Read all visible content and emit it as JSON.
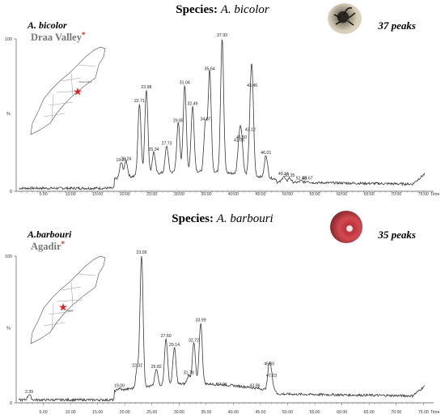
{
  "charts": [
    {
      "title_prefix": "Species:",
      "species": "A. bicolor",
      "peak_count_label": "37 peaks",
      "specimen_label": "A. bicolor",
      "location_label": "Draa Valley",
      "location_marker": "*",
      "photo_icon": "scorpion-photo-icon",
      "map_icon": "morocco-map-icon"
    },
    {
      "title_prefix": "Species:",
      "species": "A. barbouri",
      "peak_count_label": "35 peaks",
      "specimen_label": "A.barbouri",
      "location_label": "Agadir",
      "location_marker": "*",
      "photo_icon": "scorpion-photo-icon",
      "map_icon": "morocco-map-icon"
    }
  ],
  "colors": {
    "trace": "#3a3a3a",
    "marker": "#e02020",
    "text": "#000000",
    "site": "#777777"
  },
  "chart_data": [
    {
      "type": "line",
      "title": "Species: A. bicolor",
      "xlabel": "Time",
      "ylabel": "%",
      "xlim": [
        0,
        76
      ],
      "ylim": [
        0,
        100
      ],
      "x_ticks": [
        "5.00",
        "10.00",
        "15.00",
        "20.00",
        "25.00",
        "30.00",
        "35.00",
        "40.00",
        "45.00",
        "50.00",
        "55.00",
        "60.00",
        "65.00",
        "70.00",
        "75.00"
      ],
      "y_ticks": [
        "0",
        "100"
      ],
      "peaks": [
        {
          "x": 19.35,
          "label": "19.35",
          "y": 18
        },
        {
          "x": 20.24,
          "label": "20.24",
          "y": 19
        },
        {
          "x": 22.71,
          "label": "22.71",
          "y": 57
        },
        {
          "x": 23.98,
          "label": "23.98",
          "y": 66
        },
        {
          "x": 25.34,
          "label": "25.34",
          "y": 25
        },
        {
          "x": 27.73,
          "label": "27.73",
          "y": 29
        },
        {
          "x": 29.85,
          "label": "29.85",
          "y": 44
        },
        {
          "x": 31.04,
          "label": "31.04",
          "y": 69
        },
        {
          "x": 32.49,
          "label": "32.49",
          "y": 55
        },
        {
          "x": 34.87,
          "label": "34.87",
          "y": 45
        },
        {
          "x": 35.64,
          "label": "35.64",
          "y": 78
        },
        {
          "x": 37.93,
          "label": "37.93",
          "y": 100
        },
        {
          "x": 41.06,
          "label": "41.06",
          "y": 31
        },
        {
          "x": 41.5,
          "label": "41.50",
          "y": 33
        },
        {
          "x": 43.12,
          "label": "43.12",
          "y": 38
        },
        {
          "x": 43.46,
          "label": "43.46",
          "y": 67
        },
        {
          "x": 46.01,
          "label": "46.01",
          "y": 23
        },
        {
          "x": 49.24,
          "label": "49.24",
          "y": 9
        },
        {
          "x": 50.35,
          "label": "50.35",
          "y": 8
        },
        {
          "x": 52.48,
          "label": "52.48",
          "y": 6
        },
        {
          "x": 53.67,
          "label": "53.67",
          "y": 6
        }
      ]
    },
    {
      "type": "line",
      "title": "Species: A. barbouri",
      "xlabel": "Time",
      "ylabel": "%",
      "xlim": [
        0,
        76
      ],
      "ylim": [
        0,
        100
      ],
      "x_ticks": [
        "5.00",
        "10.00",
        "15.00",
        "20.00",
        "25.00",
        "30.00",
        "35.00",
        "40.00",
        "45.00",
        "50.00",
        "55.00",
        "60.00",
        "65.00",
        "70.00",
        "75.00"
      ],
      "y_ticks": [
        "0",
        "100"
      ],
      "peaks": [
        {
          "x": 2.39,
          "label": "2.39",
          "y": 5
        },
        {
          "x": 19.0,
          "label": "19.00",
          "y": 9
        },
        {
          "x": 22.32,
          "label": "22.32",
          "y": 23
        },
        {
          "x": 23.09,
          "label": "23.09",
          "y": 100
        },
        {
          "x": 25.82,
          "label": "25.82",
          "y": 22
        },
        {
          "x": 27.6,
          "label": "27.60",
          "y": 43
        },
        {
          "x": 29.14,
          "label": "29.14",
          "y": 37
        },
        {
          "x": 31.78,
          "label": "31.78",
          "y": 18
        },
        {
          "x": 32.72,
          "label": "32.72",
          "y": 40
        },
        {
          "x": 33.99,
          "label": "33.99",
          "y": 54
        },
        {
          "x": 37.91,
          "label": "37.91",
          "y": 10
        },
        {
          "x": 43.96,
          "label": "43.96",
          "y": 9
        },
        {
          "x": 46.6,
          "label": "46.60",
          "y": 24
        },
        {
          "x": 47.03,
          "label": "47.03",
          "y": 16
        }
      ]
    }
  ]
}
